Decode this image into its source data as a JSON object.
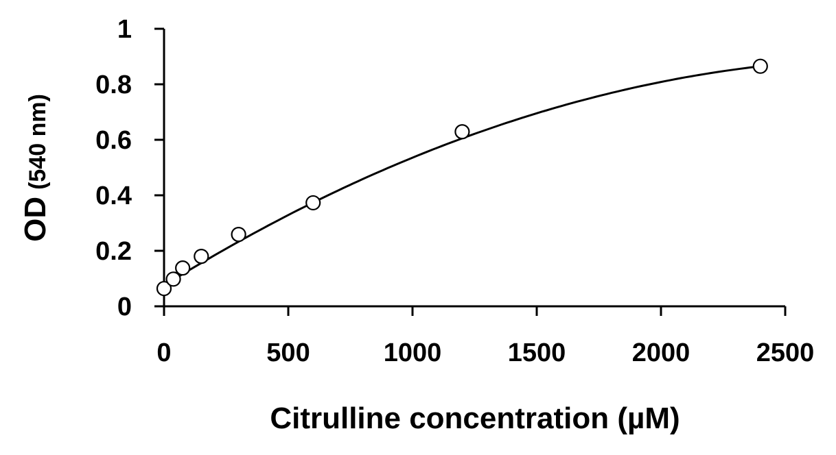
{
  "chart_data": {
    "type": "scatter",
    "xlabel": "Citrulline concentration (µM)",
    "ylabel_main": "OD",
    "ylabel_unit": "(540 nm)",
    "xlim": [
      0,
      2500
    ],
    "ylim": [
      0,
      1
    ],
    "x_ticks": [
      "0",
      "500",
      "1000",
      "1500",
      "2000",
      "2500"
    ],
    "y_ticks": [
      "0",
      "0.2",
      "0.4",
      "0.6",
      "0.8",
      "1"
    ],
    "grid": false,
    "legend": "none",
    "series": [
      {
        "marker": "open-circle",
        "x": [
          0,
          37.5,
          75,
          150,
          300,
          600,
          1200,
          2400
        ],
        "y": [
          0.064,
          0.098,
          0.138,
          0.18,
          0.259,
          0.373,
          0.629,
          0.865
        ]
      }
    ],
    "trendline": {
      "type": "polynomial-2",
      "coefficients": [
        0.075,
        0.0005545,
        -9.39e-08
      ],
      "x_range": [
        0,
        2400
      ]
    }
  }
}
